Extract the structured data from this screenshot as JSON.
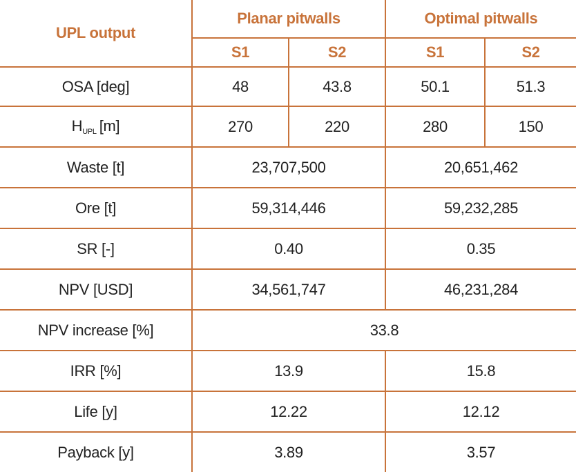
{
  "header": {
    "row_label": "UPL output",
    "groups": [
      "Planar pitwalls",
      "Optimal pitwalls"
    ],
    "scenarios": [
      "S1",
      "S2",
      "S1",
      "S2"
    ]
  },
  "rows": {
    "osa": {
      "label": "OSA [deg]",
      "values": [
        "48",
        "43.8",
        "50.1",
        "51.3"
      ]
    },
    "h_upl": {
      "label_main": "H",
      "label_sub": "UPL",
      "label_unit": "[m]",
      "values": [
        "270",
        "220",
        "280",
        "150"
      ]
    },
    "waste": {
      "label": "Waste [t]",
      "planar": "23,707,500",
      "optimal": "20,651,462"
    },
    "ore": {
      "label": "Ore [t]",
      "planar": "59,314,446",
      "optimal": "59,232,285"
    },
    "sr": {
      "label": "SR [-]",
      "planar": "0.40",
      "optimal": "0.35"
    },
    "npv": {
      "label": "NPV [USD]",
      "planar": "34,561,747",
      "optimal": "46,231,284"
    },
    "npv_increase": {
      "label": "NPV increase [%]",
      "value": "33.8"
    },
    "irr": {
      "label": "IRR [%]",
      "planar": "13.9",
      "optimal": "15.8"
    },
    "life": {
      "label": "Life [y]",
      "planar": "12.22",
      "optimal": "12.12"
    },
    "payback": {
      "label": "Payback [y]",
      "planar": "3.89",
      "optimal": "3.57"
    }
  },
  "colors": {
    "accent": "#c8733a",
    "text": "#222222"
  }
}
